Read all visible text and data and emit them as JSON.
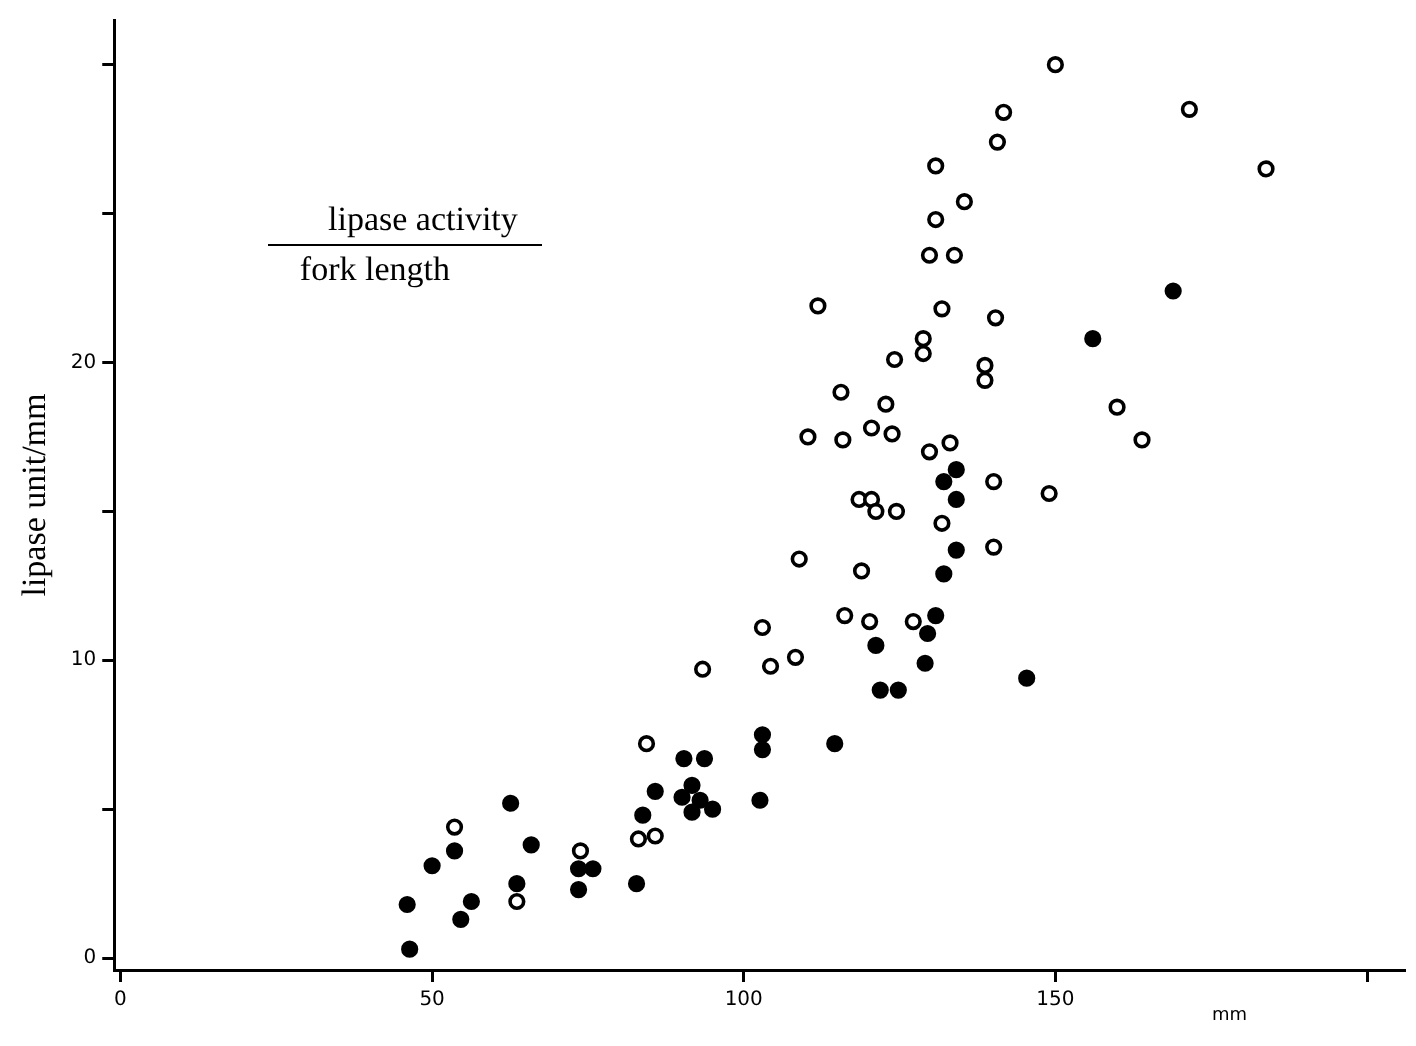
{
  "chart_data": {
    "type": "scatter",
    "ylabel": "lipase unit/mm",
    "xlabel": "mm",
    "annotations": [
      "lipase activity",
      "fork length"
    ],
    "xlim": [
      -1,
      206
    ],
    "ylim": [
      -0.4,
      31.5
    ],
    "xticks": [
      0,
      50,
      100,
      150,
      {
        "value": 200,
        "label": null
      }
    ],
    "yticks": [
      0,
      {
        "value": 5,
        "label": null
      },
      10,
      {
        "value": 15,
        "label": null
      },
      20,
      {
        "value": 25,
        "label": null
      },
      {
        "value": 30,
        "label": null
      }
    ],
    "grid": false,
    "legend": false,
    "marker": "circle",
    "series": [
      {
        "color": "#000000",
        "x": [
          46.0,
          46.4,
          50,
          53.6,
          56.3,
          54.6,
          62.6,
          65.9,
          63.6,
          73.5,
          75.8,
          73.5,
          82.8,
          83.8,
          85.8,
          90.4,
          93.7,
          91.7,
          90.1,
          93,
          91.7,
          95,
          102.6,
          121.2,
          121.9,
          124.8,
          103,
          103,
          114.6,
          156,
          134.1,
          132.1,
          134.1,
          134.1,
          132.1,
          130.8,
          129.5,
          129.1,
          145.4,
          168.9
        ],
        "values": [
          1.8,
          0.3,
          3.1,
          3.6,
          1.9,
          1.3,
          5.2,
          3.8,
          2.5,
          3.0,
          3.0,
          2.3,
          2.5,
          4.8,
          5.6,
          6.7,
          6.7,
          5.8,
          5.4,
          5.3,
          4.9,
          5.0,
          5.3,
          10.5,
          9.0,
          9.0,
          7.5,
          7.0,
          7.2,
          20.8,
          16.4,
          16.0,
          15.4,
          13.7,
          12.9,
          11.5,
          10.9,
          9.9,
          9.4,
          22.4
        ]
      },
      {
        "color": "#000000",
        "x": [
          53.6,
          63.6,
          73.8,
          83.1,
          85.8,
          84.4,
          108.9,
          118.9,
          103,
          116.2,
          120.2,
          108.3,
          104.3,
          93.4,
          111.9,
          131.8,
          140.4,
          128.8,
          128.8,
          124.2,
          138.7,
          138.7,
          115.6,
          122.8,
          120.5,
          123.8,
          110.3,
          115.9,
          129.8,
          133.1,
          140.1,
          149,
          118.5,
          120.5,
          121.2,
          124.5,
          131.8,
          140.1,
          127.2,
          150,
          141.7,
          171.5,
          140.7,
          130.8,
          183.8,
          135.4,
          130.8,
          129.8,
          133.8,
          159.9,
          163.9
        ],
        "values": [
          4.4,
          1.9,
          3.6,
          4.0,
          4.1,
          7.2,
          13.4,
          13.0,
          11.1,
          11.5,
          11.3,
          10.1,
          9.8,
          9.7,
          21.9,
          21.8,
          21.5,
          20.8,
          20.3,
          20.1,
          19.9,
          19.4,
          19.0,
          18.6,
          17.8,
          17.6,
          17.5,
          17.4,
          17.0,
          17.3,
          16.0,
          15.6,
          15.4,
          15.4,
          15.0,
          15.0,
          14.6,
          13.8,
          11.3,
          30.0,
          28.4,
          28.5,
          27.4,
          26.6,
          26.5,
          25.4,
          24.8,
          23.6,
          23.6,
          18.5,
          17.4
        ]
      }
    ]
  }
}
